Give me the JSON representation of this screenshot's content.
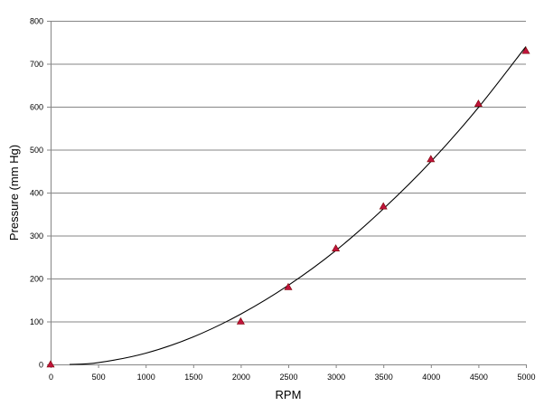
{
  "chart_data": {
    "type": "scatter",
    "title": "",
    "xlabel": "RPM",
    "ylabel": "Pressure (mm Hg)",
    "xlim": [
      0,
      5000
    ],
    "ylim": [
      0,
      800
    ],
    "x_ticks": [
      0,
      500,
      1000,
      1500,
      2000,
      2500,
      3000,
      3500,
      4000,
      4500,
      5000
    ],
    "y_ticks": [
      0,
      100,
      200,
      300,
      400,
      500,
      600,
      700,
      800
    ],
    "grid": "horizontal",
    "legend": "none",
    "series": [
      {
        "points": [
          {
            "x": 0,
            "y": 0
          },
          {
            "x": 2000,
            "y": 100
          },
          {
            "x": 2500,
            "y": 180
          },
          {
            "x": 3000,
            "y": 270
          },
          {
            "x": 3500,
            "y": 368
          },
          {
            "x": 4000,
            "y": 478
          },
          {
            "x": 4500,
            "y": 607
          },
          {
            "x": 5000,
            "y": 730
          }
        ],
        "marker": "triangle",
        "color": "#c0143c"
      }
    ],
    "trendline": {
      "type": "polynomial",
      "color": "#000000",
      "curve": [
        {
          "x": 200,
          "y": 0
        },
        {
          "x": 500,
          "y": 4
        },
        {
          "x": 1000,
          "y": 26
        },
        {
          "x": 1500,
          "y": 64
        },
        {
          "x": 2000,
          "y": 117
        },
        {
          "x": 2500,
          "y": 184
        },
        {
          "x": 3000,
          "y": 265
        },
        {
          "x": 3500,
          "y": 362
        },
        {
          "x": 4000,
          "y": 472
        },
        {
          "x": 4500,
          "y": 598
        },
        {
          "x": 5000,
          "y": 740
        }
      ]
    }
  }
}
